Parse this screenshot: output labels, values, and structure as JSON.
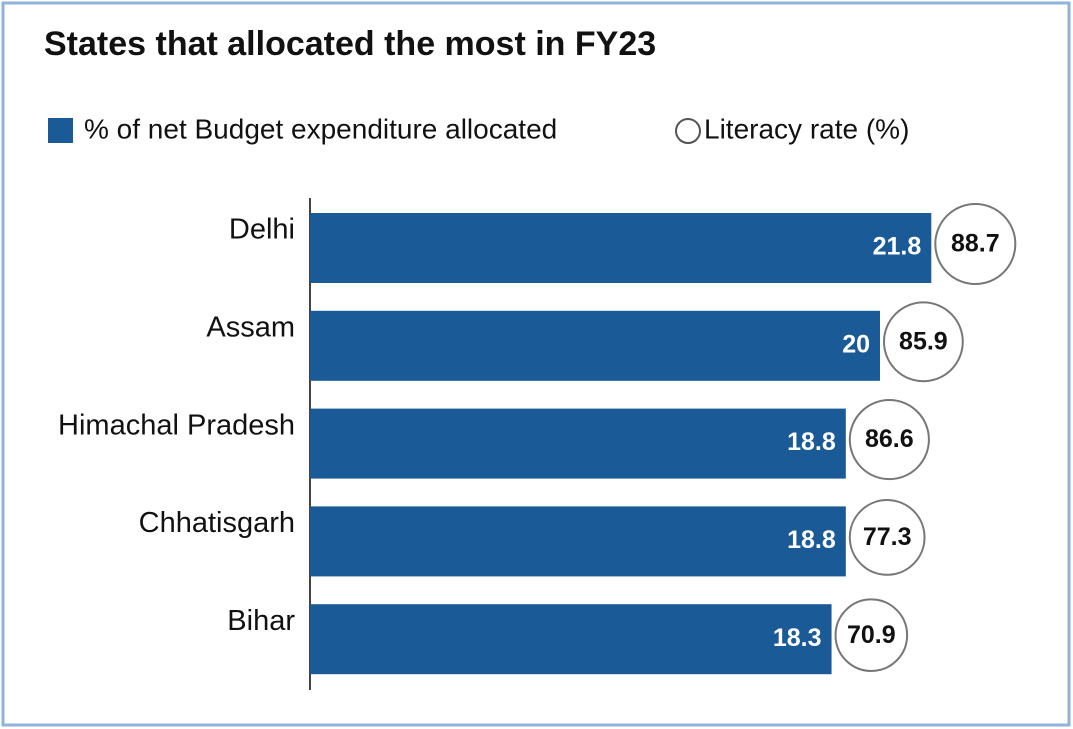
{
  "chart_data": {
    "type": "bar",
    "title": "States that allocated the most in FY23",
    "categories": [
      "Delhi",
      "Assam",
      "Himachal Pradesh",
      "Chhatisgarh",
      "Bihar"
    ],
    "series": [
      {
        "name": "% of net Budget expenditure allocated",
        "color": "#1a5a96",
        "values": [
          21.8,
          20,
          18.8,
          18.8,
          18.3
        ]
      },
      {
        "name": "Literacy rate (%)",
        "color": "#ffffff",
        "values": [
          88.7,
          85.9,
          86.6,
          77.3,
          70.9
        ]
      }
    ]
  }
}
